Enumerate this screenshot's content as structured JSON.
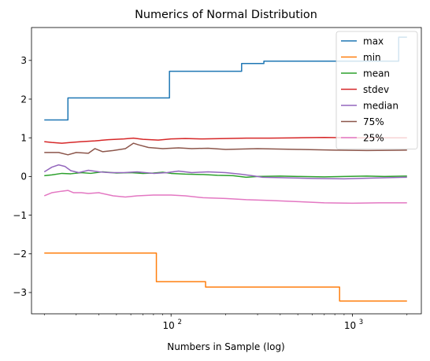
{
  "chart_data": {
    "type": "line",
    "title": "Numerics of Normal Distribution",
    "xlabel": "Numbers in Sample (log)",
    "ylabel": "",
    "xscale": "log",
    "xlim": [
      17,
      2400
    ],
    "ylim": [
      -3.55,
      3.85
    ],
    "grid": false,
    "legend_position": "top-right",
    "x_ticks": [
      {
        "value": 100,
        "base": "10",
        "exp": "2"
      },
      {
        "value": 1000,
        "base": "10",
        "exp": "3"
      }
    ],
    "y_ticks": [
      {
        "value": -3,
        "label": "−3"
      },
      {
        "value": -2,
        "label": "−2"
      },
      {
        "value": -1,
        "label": "−1"
      },
      {
        "value": 0,
        "label": "0"
      },
      {
        "value": 1,
        "label": "1"
      },
      {
        "value": 2,
        "label": "2"
      },
      {
        "value": 3,
        "label": "3"
      }
    ],
    "series": [
      {
        "name": "max",
        "color": "#1f77b4",
        "kind": "step",
        "points": [
          [
            20,
            1.46
          ],
          [
            27,
            1.46
          ],
          [
            27,
            2.03
          ],
          [
            98,
            2.03
          ],
          [
            98,
            2.72
          ],
          [
            245,
            2.72
          ],
          [
            245,
            2.92
          ],
          [
            325,
            2.92
          ],
          [
            325,
            2.98
          ],
          [
            1800,
            2.98
          ],
          [
            1800,
            3.6
          ],
          [
            2000,
            3.6
          ]
        ]
      },
      {
        "name": "min",
        "color": "#ff7f0e",
        "kind": "step",
        "points": [
          [
            20,
            -1.98
          ],
          [
            83,
            -1.98
          ],
          [
            83,
            -2.72
          ],
          [
            155,
            -2.72
          ],
          [
            155,
            -2.86
          ],
          [
            850,
            -2.86
          ],
          [
            850,
            -3.22
          ],
          [
            2000,
            -3.22
          ]
        ]
      },
      {
        "name": "mean",
        "color": "#2ca02c",
        "kind": "line",
        "points": [
          [
            20,
            0.02
          ],
          [
            22,
            0.04
          ],
          [
            25,
            0.08
          ],
          [
            28,
            0.07
          ],
          [
            32,
            0.1
          ],
          [
            36,
            0.08
          ],
          [
            42,
            0.12
          ],
          [
            50,
            0.09
          ],
          [
            60,
            0.1
          ],
          [
            70,
            0.08
          ],
          [
            80,
            0.09
          ],
          [
            90,
            0.11
          ],
          [
            100,
            0.08
          ],
          [
            120,
            0.06
          ],
          [
            150,
            0.05
          ],
          [
            180,
            0.03
          ],
          [
            220,
            0.02
          ],
          [
            260,
            -0.02
          ],
          [
            300,
            0.0
          ],
          [
            400,
            0.01
          ],
          [
            500,
            0.0
          ],
          [
            700,
            -0.01
          ],
          [
            900,
            0.0
          ],
          [
            1200,
            0.01
          ],
          [
            1500,
            0.0
          ],
          [
            2000,
            0.01
          ]
        ]
      },
      {
        "name": "stdev",
        "color": "#d62728",
        "kind": "line",
        "points": [
          [
            20,
            0.9
          ],
          [
            22,
            0.88
          ],
          [
            25,
            0.86
          ],
          [
            28,
            0.88
          ],
          [
            32,
            0.9
          ],
          [
            38,
            0.92
          ],
          [
            45,
            0.95
          ],
          [
            55,
            0.97
          ],
          [
            62,
            0.99
          ],
          [
            70,
            0.96
          ],
          [
            85,
            0.94
          ],
          [
            100,
            0.97
          ],
          [
            120,
            0.98
          ],
          [
            150,
            0.97
          ],
          [
            200,
            0.98
          ],
          [
            260,
            0.99
          ],
          [
            350,
            0.99
          ],
          [
            500,
            1.0
          ],
          [
            700,
            1.01
          ],
          [
            1000,
            1.0
          ],
          [
            1400,
            1.0
          ],
          [
            2000,
            1.0
          ]
        ]
      },
      {
        "name": "median",
        "color": "#9467bd",
        "kind": "line",
        "points": [
          [
            20,
            0.12
          ],
          [
            22,
            0.24
          ],
          [
            24,
            0.3
          ],
          [
            26,
            0.26
          ],
          [
            28,
            0.15
          ],
          [
            31,
            0.1
          ],
          [
            35,
            0.16
          ],
          [
            40,
            0.12
          ],
          [
            46,
            0.1
          ],
          [
            55,
            0.1
          ],
          [
            65,
            0.12
          ],
          [
            80,
            0.08
          ],
          [
            95,
            0.1
          ],
          [
            110,
            0.14
          ],
          [
            130,
            0.1
          ],
          [
            160,
            0.12
          ],
          [
            200,
            0.1
          ],
          [
            240,
            0.06
          ],
          [
            280,
            0.02
          ],
          [
            320,
            -0.02
          ],
          [
            400,
            -0.03
          ],
          [
            600,
            -0.05
          ],
          [
            900,
            -0.06
          ],
          [
            1300,
            -0.04
          ],
          [
            2000,
            -0.02
          ]
        ]
      },
      {
        "name": "75%",
        "color": "#8c564b",
        "kind": "line",
        "points": [
          [
            20,
            0.62
          ],
          [
            24,
            0.62
          ],
          [
            27,
            0.56
          ],
          [
            30,
            0.62
          ],
          [
            35,
            0.6
          ],
          [
            38,
            0.72
          ],
          [
            42,
            0.64
          ],
          [
            48,
            0.67
          ],
          [
            56,
            0.72
          ],
          [
            62,
            0.86
          ],
          [
            66,
            0.82
          ],
          [
            75,
            0.75
          ],
          [
            90,
            0.72
          ],
          [
            110,
            0.74
          ],
          [
            130,
            0.72
          ],
          [
            160,
            0.73
          ],
          [
            200,
            0.7
          ],
          [
            300,
            0.72
          ],
          [
            500,
            0.7
          ],
          [
            800,
            0.68
          ],
          [
            1200,
            0.67
          ],
          [
            2000,
            0.68
          ]
        ]
      },
      {
        "name": "25%",
        "color": "#e377c2",
        "kind": "line",
        "points": [
          [
            20,
            -0.5
          ],
          [
            22,
            -0.42
          ],
          [
            25,
            -0.38
          ],
          [
            27,
            -0.36
          ],
          [
            29,
            -0.42
          ],
          [
            32,
            -0.42
          ],
          [
            35,
            -0.44
          ],
          [
            40,
            -0.42
          ],
          [
            48,
            -0.5
          ],
          [
            56,
            -0.53
          ],
          [
            65,
            -0.5
          ],
          [
            80,
            -0.48
          ],
          [
            100,
            -0.48
          ],
          [
            120,
            -0.5
          ],
          [
            150,
            -0.55
          ],
          [
            200,
            -0.57
          ],
          [
            260,
            -0.6
          ],
          [
            350,
            -0.62
          ],
          [
            500,
            -0.65
          ],
          [
            700,
            -0.68
          ],
          [
            1000,
            -0.69
          ],
          [
            1400,
            -0.68
          ],
          [
            2000,
            -0.68
          ]
        ]
      }
    ]
  }
}
